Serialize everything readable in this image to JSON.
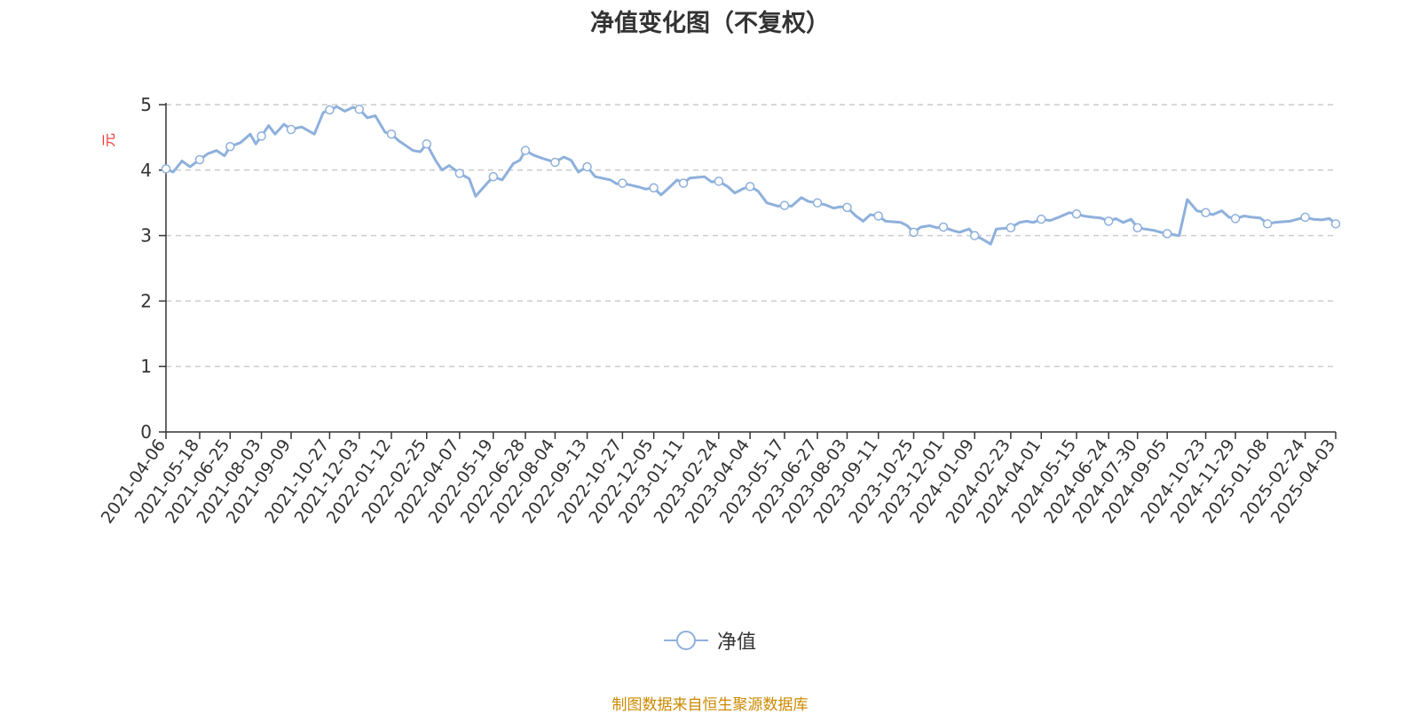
{
  "chart_data": {
    "type": "line",
    "title": "净值变化图（不复权）",
    "ylabel": "元",
    "ylabel_color": "#ee3333",
    "line_color": "#8eb0dc",
    "ylim": [
      0,
      5
    ],
    "yticks": [
      "0",
      "1",
      "2",
      "3",
      "4",
      "5"
    ],
    "grid": true,
    "legend_position": "bottom-center",
    "x_ticks": [
      "2021-04-06",
      "2021-05-18",
      "2021-06-25",
      "2021-08-03",
      "2021-09-09",
      "2021-10-27",
      "2021-12-03",
      "2022-01-12",
      "2022-02-25",
      "2022-04-07",
      "2022-05-19",
      "2022-06-28",
      "2022-08-04",
      "2022-09-13",
      "2022-10-27",
      "2022-12-05",
      "2023-01-11",
      "2023-02-24",
      "2023-04-04",
      "2023-05-17",
      "2023-06-27",
      "2023-08-03",
      "2023-09-11",
      "2023-10-25",
      "2023-12-01",
      "2024-01-09",
      "2024-02-23",
      "2024-04-01",
      "2024-05-15",
      "2024-06-24",
      "2024-07-30",
      "2024-09-05",
      "2024-10-23",
      "2024-11-29",
      "2025-01-08",
      "2025-02-24",
      "2025-04-03"
    ],
    "series": [
      {
        "name": "净值",
        "x": [
          "2021-04-06",
          "2021-04-15",
          "2021-04-26",
          "2021-05-06",
          "2021-05-18",
          "2021-05-28",
          "2021-06-08",
          "2021-06-18",
          "2021-06-25",
          "2021-07-08",
          "2021-07-20",
          "2021-07-27",
          "2021-08-03",
          "2021-08-12",
          "2021-08-20",
          "2021-08-31",
          "2021-09-09",
          "2021-09-22",
          "2021-10-08",
          "2021-10-19",
          "2021-10-27",
          "2021-11-05",
          "2021-11-15",
          "2021-11-25",
          "2021-12-03",
          "2021-12-13",
          "2021-12-23",
          "2022-01-04",
          "2022-01-12",
          "2022-01-21",
          "2022-02-08",
          "2022-02-17",
          "2022-02-25",
          "2022-03-08",
          "2022-03-16",
          "2022-03-25",
          "2022-04-07",
          "2022-04-19",
          "2022-04-27",
          "2022-05-10",
          "2022-05-19",
          "2022-05-30",
          "2022-06-13",
          "2022-06-21",
          "2022-06-28",
          "2022-07-08",
          "2022-07-19",
          "2022-07-27",
          "2022-08-04",
          "2022-08-15",
          "2022-08-24",
          "2022-09-02",
          "2022-09-13",
          "2022-09-23",
          "2022-10-12",
          "2022-10-20",
          "2022-10-27",
          "2022-11-07",
          "2022-11-17",
          "2022-11-25",
          "2022-12-05",
          "2022-12-14",
          "2022-12-23",
          "2023-01-03",
          "2023-01-11",
          "2023-01-19",
          "2023-02-06",
          "2023-02-15",
          "2023-02-24",
          "2023-03-07",
          "2023-03-16",
          "2023-03-27",
          "2023-04-04",
          "2023-04-14",
          "2023-04-25",
          "2023-05-09",
          "2023-05-17",
          "2023-05-26",
          "2023-06-07",
          "2023-06-16",
          "2023-06-27",
          "2023-07-07",
          "2023-07-17",
          "2023-07-26",
          "2023-08-03",
          "2023-08-14",
          "2023-08-23",
          "2023-09-01",
          "2023-09-11",
          "2023-09-20",
          "2023-10-09",
          "2023-10-17",
          "2023-10-25",
          "2023-11-03",
          "2023-11-14",
          "2023-11-23",
          "2023-12-01",
          "2023-12-12",
          "2023-12-21",
          "2024-01-02",
          "2024-01-09",
          "2024-01-18",
          "2024-01-29",
          "2024-02-05",
          "2024-02-23",
          "2024-03-05",
          "2024-03-14",
          "2024-03-22",
          "2024-04-01",
          "2024-04-12",
          "2024-04-23",
          "2024-05-06",
          "2024-05-15",
          "2024-05-24",
          "2024-06-04",
          "2024-06-14",
          "2024-06-24",
          "2024-07-03",
          "2024-07-12",
          "2024-07-22",
          "2024-07-30",
          "2024-08-08",
          "2024-08-19",
          "2024-08-28",
          "2024-09-05",
          "2024-09-20",
          "2024-09-30",
          "2024-10-12",
          "2024-10-23",
          "2024-11-01",
          "2024-11-12",
          "2024-11-21",
          "2024-11-29",
          "2024-12-10",
          "2024-12-19",
          "2024-12-30",
          "2025-01-08",
          "2025-01-17",
          "2025-02-05",
          "2025-02-14",
          "2025-02-24",
          "2025-03-06",
          "2025-03-17",
          "2025-03-26",
          "2025-04-03"
        ],
        "values": [
          4.02,
          3.97,
          4.14,
          4.05,
          4.16,
          4.25,
          4.3,
          4.22,
          4.36,
          4.42,
          4.55,
          4.4,
          4.52,
          4.68,
          4.55,
          4.7,
          4.62,
          4.66,
          4.55,
          4.88,
          4.92,
          4.97,
          4.9,
          4.96,
          4.93,
          4.8,
          4.83,
          4.58,
          4.55,
          4.45,
          4.3,
          4.28,
          4.4,
          4.15,
          4.0,
          4.07,
          3.95,
          3.87,
          3.6,
          3.78,
          3.9,
          3.85,
          4.1,
          4.15,
          4.3,
          4.23,
          4.18,
          4.15,
          4.12,
          4.2,
          4.15,
          3.97,
          4.05,
          3.9,
          3.85,
          3.79,
          3.8,
          3.77,
          3.74,
          3.71,
          3.73,
          3.62,
          3.72,
          3.85,
          3.8,
          3.88,
          3.9,
          3.82,
          3.83,
          3.75,
          3.65,
          3.72,
          3.75,
          3.68,
          3.5,
          3.45,
          3.46,
          3.45,
          3.58,
          3.52,
          3.5,
          3.47,
          3.42,
          3.44,
          3.43,
          3.3,
          3.22,
          3.32,
          3.3,
          3.22,
          3.2,
          3.15,
          3.05,
          3.13,
          3.15,
          3.12,
          3.13,
          3.08,
          3.05,
          3.1,
          3.0,
          2.95,
          2.87,
          3.1,
          3.12,
          3.2,
          3.22,
          3.2,
          3.25,
          3.23,
          3.28,
          3.35,
          3.33,
          3.3,
          3.28,
          3.27,
          3.22,
          3.26,
          3.2,
          3.25,
          3.12,
          3.1,
          3.08,
          3.05,
          3.03,
          3.0,
          3.55,
          3.38,
          3.35,
          3.32,
          3.38,
          3.28,
          3.26,
          3.3,
          3.28,
          3.27,
          3.18,
          3.2,
          3.22,
          3.25,
          3.28,
          3.25,
          3.24,
          3.26,
          3.18
        ]
      }
    ]
  },
  "legend": {
    "label": "净值"
  },
  "footer": {
    "source": "制图数据来自恒生聚源数据库"
  }
}
